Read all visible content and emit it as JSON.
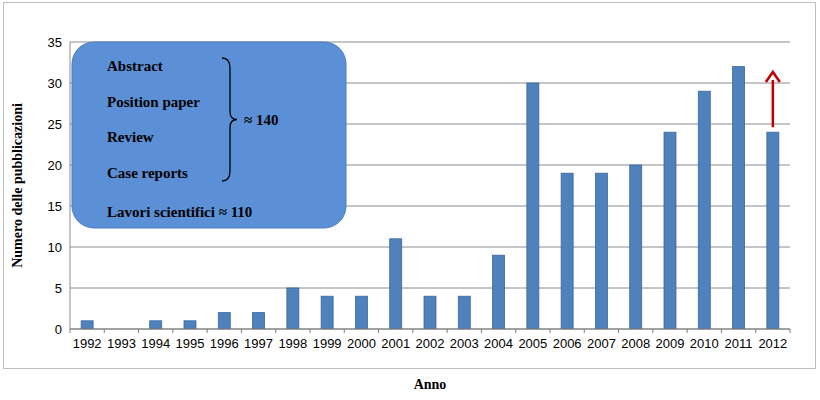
{
  "chart_data": {
    "type": "bar",
    "x_label": "Anno",
    "y_label": "Numero delle pubblicazioni",
    "categories": [
      "1992",
      "1993",
      "1994",
      "1995",
      "1996",
      "1997",
      "1998",
      "1999",
      "2000",
      "2001",
      "2002",
      "2003",
      "2004",
      "2005",
      "2006",
      "2007",
      "2008",
      "2009",
      "2010",
      "2011",
      "2012"
    ],
    "values": [
      1,
      0,
      1,
      1,
      2,
      2,
      5,
      4,
      4,
      11,
      4,
      4,
      9,
      30,
      19,
      19,
      20,
      24,
      29,
      32,
      24
    ],
    "color": "#4f81bd",
    "ylim": [
      0,
      35
    ],
    "yticks": [
      0,
      5,
      10,
      15,
      20,
      25,
      30,
      35
    ],
    "grid": true,
    "annotations": [
      "Abstract",
      "Position paper",
      "Review",
      "Case reports",
      "≈ 140",
      "Lavori scientifici ≈ 110"
    ]
  }
}
